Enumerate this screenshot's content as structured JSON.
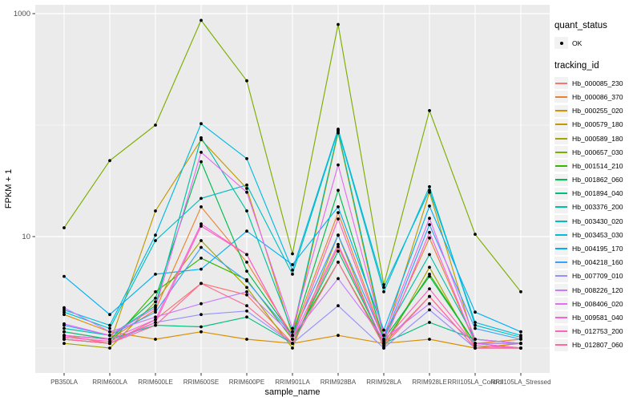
{
  "chart_data": {
    "type": "line",
    "xlabel": "sample_name",
    "ylabel": "FPKM + 1",
    "y_scale": "log10",
    "ylim": [
      0.6,
      1200
    ],
    "grid": true,
    "panel_bg": "#EBEBEB",
    "grid_color": "#FFFFFF",
    "point_color": "#000000",
    "y_ticks": [
      {
        "label": "1000",
        "value": 1000
      },
      {
        "label": "10",
        "value": 10
      }
    ],
    "y_minor_breaks": [
      100,
      1
    ],
    "categories": [
      "PB350LA",
      "RRIM600LA",
      "RRIM600LE",
      "RRIM600SE",
      "RRIM600PE",
      "RRIM901LA",
      "RRIM928BA",
      "RRIM928LA",
      "RRIM928LE",
      "RRII105LA_Control",
      "RRII105LA_Stressed"
    ],
    "legend": {
      "quant_status_title": "quant_status",
      "quant_status_items": [
        "OK"
      ],
      "tracking_id_title": "tracking_id",
      "legend_position": "right"
    },
    "series": [
      {
        "name": "Hb_000085_230",
        "color": "#F8766D",
        "values": [
          1.3,
          1.1,
          1.8,
          3.8,
          3.0,
          1.1,
          8.1,
          1.1,
          2.9,
          1.0,
          1.1
        ]
      },
      {
        "name": "Hb_000086_370",
        "color": "#EA8331",
        "values": [
          1.4,
          1.2,
          2.2,
          18.5,
          5.9,
          1.3,
          16.4,
          1.2,
          9.7,
          1.1,
          1.2
        ]
      },
      {
        "name": "Hb_000255_020",
        "color": "#D89000",
        "values": [
          2.0,
          1.4,
          1.2,
          1.4,
          1.2,
          1.1,
          1.3,
          1.1,
          1.2,
          1.0,
          1.1
        ]
      },
      {
        "name": "Hb_000579_180",
        "color": "#C09B00",
        "values": [
          1.2,
          1.1,
          17,
          74,
          27,
          1.3,
          85,
          1.2,
          25,
          1.1,
          1.0
        ]
      },
      {
        "name": "Hb_000589_180",
        "color": "#A3A500",
        "values": [
          1.1,
          1.0,
          2.6,
          9.2,
          3.5,
          1.0,
          10.3,
          1.0,
          5.3,
          1.0,
          1.0
        ]
      },
      {
        "name": "Hb_000657_030",
        "color": "#7CAE00",
        "values": [
          12,
          48,
          100,
          870,
          250,
          7,
          800,
          3.7,
          135,
          10.5,
          3.2
        ]
      },
      {
        "name": "Hb_001514_210",
        "color": "#39B600",
        "values": [
          1.2,
          1.1,
          3.2,
          6.4,
          4.1,
          1.2,
          5.9,
          1.1,
          4.6,
          1.1,
          1.0
        ]
      },
      {
        "name": "Hb_001862_060",
        "color": "#00BB4E",
        "values": [
          1.3,
          1.2,
          2.8,
          47,
          4.9,
          1.3,
          26,
          1.2,
          4.4,
          1.1,
          1.1
        ]
      },
      {
        "name": "Hb_001894_040",
        "color": "#00BF7D",
        "values": [
          1.4,
          1.2,
          1.6,
          1.55,
          1.9,
          1.1,
          7.4,
          1.1,
          1.7,
          1.2,
          1.1
        ]
      },
      {
        "name": "Hb_003376_200",
        "color": "#00C1A3",
        "values": [
          1.5,
          1.3,
          2.4,
          77,
          17,
          1.4,
          88,
          1.3,
          6.9,
          1.2,
          1.1
        ]
      },
      {
        "name": "Hb_003430_020",
        "color": "#00BFC4",
        "values": [
          2.1,
          1.5,
          9.2,
          22,
          29,
          4.6,
          90,
          3.2,
          28,
          1.6,
          1.25
        ]
      },
      {
        "name": "Hb_003453_030",
        "color": "#00BAE0",
        "values": [
          2.2,
          1.6,
          10.3,
          103,
          50,
          5.0,
          92,
          3.5,
          26,
          1.7,
          1.3
        ]
      },
      {
        "name": "Hb_004195_170",
        "color": "#00B0F6",
        "values": [
          4.4,
          2.0,
          4.6,
          5.1,
          11.2,
          5.6,
          18.5,
          1.45,
          18.8,
          2.1,
          1.4
        ]
      },
      {
        "name": "Hb_004218_160",
        "color": "#35A2FF",
        "values": [
          1.6,
          1.3,
          2.1,
          8.0,
          4.0,
          1.3,
          10.3,
          1.2,
          12.8,
          1.5,
          1.2
        ]
      },
      {
        "name": "Hb_007709_010",
        "color": "#9590FF",
        "values": [
          1.2,
          1.1,
          1.7,
          2.0,
          2.15,
          1.1,
          2.4,
          1.0,
          2.2,
          1.0,
          1.0
        ]
      },
      {
        "name": "Hb_008226_120",
        "color": "#C77CFF",
        "values": [
          2.3,
          1.4,
          1.9,
          2.5,
          3.2,
          1.3,
          4.2,
          1.2,
          2.5,
          1.1,
          1.1
        ]
      },
      {
        "name": "Hb_008406_020",
        "color": "#E76BF3",
        "values": [
          1.65,
          1.3,
          2.3,
          57,
          25,
          1.5,
          44,
          1.3,
          14.6,
          1.2,
          1.1
        ]
      },
      {
        "name": "Hb_009581_040",
        "color": "#FA62DB",
        "values": [
          1.3,
          1.2,
          1.8,
          13,
          6.9,
          1.2,
          8.5,
          1.1,
          10.9,
          1.1,
          1.0
        ]
      },
      {
        "name": "Hb_012753_200",
        "color": "#FF62BC",
        "values": [
          1.25,
          1.15,
          1.7,
          12.4,
          6.9,
          1.2,
          14.4,
          1.15,
          3.4,
          1.05,
          1.0
        ]
      },
      {
        "name": "Hb_012807_060",
        "color": "#FF6A98",
        "values": [
          1.2,
          1.1,
          1.6,
          3.8,
          2.4,
          1.1,
          5.9,
          1.05,
          2.9,
          1.0,
          1.0
        ]
      }
    ]
  }
}
